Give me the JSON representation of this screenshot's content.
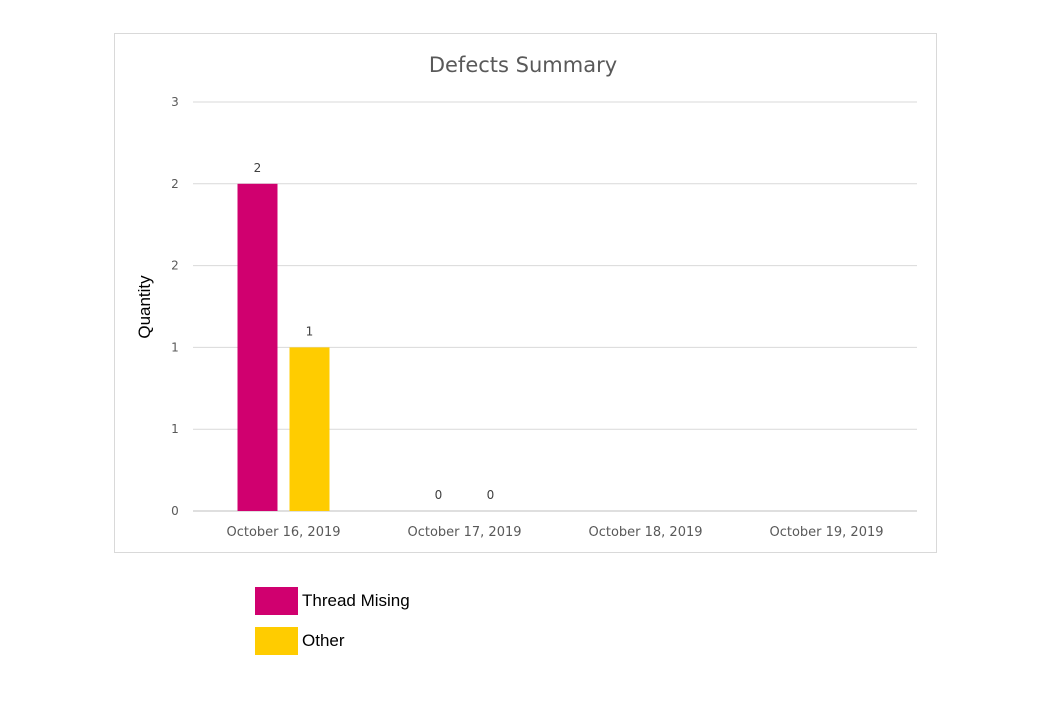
{
  "chart_data": {
    "type": "bar",
    "title": "Defects Summary",
    "xlabel": "",
    "ylabel": "Quantity",
    "categories": [
      "October 16, 2019",
      "October 17, 2019",
      "October 18, 2019",
      "October 19, 2019"
    ],
    "series": [
      {
        "name": "Thread Mising",
        "color": "#d0006f",
        "values": [
          2,
          0,
          null,
          null
        ],
        "labels": [
          "2",
          "0",
          null,
          null
        ]
      },
      {
        "name": "Other",
        "color": "#ffcc00",
        "values": [
          1,
          0,
          null,
          null
        ],
        "labels": [
          "1",
          "0",
          null,
          null
        ]
      }
    ],
    "ylim": [
      0,
      2.5
    ],
    "yticks": [
      0,
      0.5,
      1,
      1.5,
      2,
      2.5
    ],
    "ytick_labels": [
      "0",
      "1",
      "1",
      "2",
      "2",
      "3"
    ],
    "grid": true,
    "legend_position": "bottom-left"
  }
}
